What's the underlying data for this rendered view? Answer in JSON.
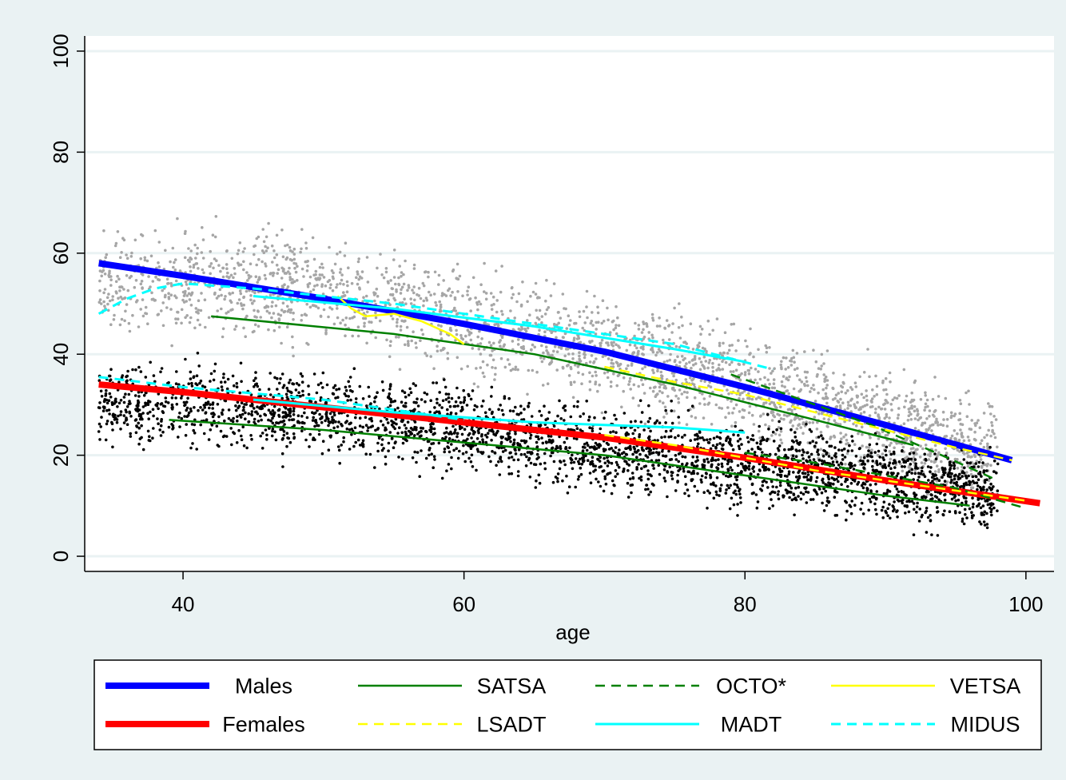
{
  "chart_data": {
    "type": "scatter",
    "title": "",
    "xlabel": "age",
    "ylabel": "",
    "xlim": [
      33,
      102
    ],
    "ylim": [
      -3,
      103
    ],
    "x_ticks": [
      40,
      60,
      80,
      100
    ],
    "y_ticks": [
      0,
      20,
      40,
      60,
      80,
      100
    ],
    "grid": "horizontal",
    "legend_position": "bottom",
    "scatter_groups": [
      {
        "group": "males",
        "color": "#a6a6a6",
        "center": [
          [
            45,
            54
          ],
          [
            50,
            52
          ],
          [
            55,
            50
          ],
          [
            60,
            47
          ],
          [
            65,
            44
          ],
          [
            70,
            41
          ],
          [
            75,
            38
          ],
          [
            80,
            34
          ],
          [
            85,
            30
          ],
          [
            90,
            26
          ],
          [
            95,
            22
          ]
        ],
        "spread": 9,
        "count": 2600
      },
      {
        "group": "females",
        "color": "#000000",
        "center": [
          [
            45,
            30
          ],
          [
            50,
            28
          ],
          [
            55,
            27
          ],
          [
            60,
            25
          ],
          [
            65,
            23
          ],
          [
            70,
            21
          ],
          [
            75,
            20
          ],
          [
            80,
            18
          ],
          [
            85,
            17
          ],
          [
            90,
            15
          ],
          [
            95,
            13
          ]
        ],
        "spread": 7,
        "count": 3000
      }
    ],
    "series": [
      {
        "name": "Males",
        "color": "#0000ff",
        "width": 8,
        "dash": "",
        "points": [
          [
            34,
            58
          ],
          [
            40,
            55.5
          ],
          [
            50,
            51
          ],
          [
            60,
            46
          ],
          [
            70,
            40.5
          ],
          [
            80,
            33.5
          ],
          [
            90,
            26
          ],
          [
            99,
            19
          ]
        ]
      },
      {
        "name": "Females",
        "color": "#ff0000",
        "width": 8,
        "dash": "",
        "points": [
          [
            34,
            34
          ],
          [
            40,
            32.5
          ],
          [
            50,
            29.5
          ],
          [
            60,
            26.5
          ],
          [
            70,
            23.5
          ],
          [
            80,
            19.5
          ],
          [
            90,
            15
          ],
          [
            101,
            10.5
          ]
        ]
      },
      {
        "name": "SATSA",
        "color": "#008000",
        "width": 2.5,
        "dash": "",
        "points": [
          [
            42,
            47.5
          ],
          [
            55,
            44
          ],
          [
            65,
            40
          ],
          [
            75,
            34
          ],
          [
            85,
            27
          ],
          [
            92,
            22
          ]
        ]
      },
      {
        "name": "SATSA",
        "color": "#008000",
        "width": 2.5,
        "dash": "",
        "points": [
          [
            39,
            27
          ],
          [
            50,
            25
          ],
          [
            60,
            22.5
          ],
          [
            70,
            20
          ],
          [
            80,
            16
          ],
          [
            90,
            12
          ],
          [
            96,
            10
          ]
        ]
      },
      {
        "name": "OCTO*",
        "color": "#008000",
        "width": 2.5,
        "dash": "12,8",
        "points": [
          [
            79,
            36
          ],
          [
            84,
            31
          ],
          [
            89,
            26
          ],
          [
            94,
            20
          ],
          [
            98,
            15
          ]
        ]
      },
      {
        "name": "OCTO*",
        "color": "#008000",
        "width": 2.5,
        "dash": "12,8",
        "points": [
          [
            80,
            20.5
          ],
          [
            85,
            18.5
          ],
          [
            90,
            16
          ],
          [
            95,
            13.5
          ],
          [
            100,
            9.5
          ]
        ]
      },
      {
        "name": "VETSA",
        "color": "#ffff00",
        "width": 2.5,
        "dash": "",
        "points": [
          [
            51,
            51.5
          ],
          [
            52,
            49
          ],
          [
            53,
            47.5
          ],
          [
            55,
            48
          ],
          [
            57,
            46.5
          ],
          [
            59,
            44
          ],
          [
            60,
            42
          ]
        ]
      },
      {
        "name": "LSADT",
        "color": "#ffff00",
        "width": 2.5,
        "dash": "12,8",
        "points": [
          [
            70,
            37.5
          ],
          [
            75,
            34.5
          ],
          [
            80,
            32
          ],
          [
            85,
            28.5
          ],
          [
            90,
            25
          ],
          [
            95,
            21.5
          ],
          [
            99,
            19
          ]
        ]
      },
      {
        "name": "LSADT",
        "color": "#ffff00",
        "width": 2.5,
        "dash": "12,8",
        "points": [
          [
            70,
            24
          ],
          [
            75,
            22
          ],
          [
            80,
            19.5
          ],
          [
            85,
            17
          ],
          [
            90,
            15
          ],
          [
            95,
            13
          ],
          [
            100,
            11
          ]
        ]
      },
      {
        "name": "MADT",
        "color": "#00ffff",
        "width": 3,
        "dash": "",
        "points": [
          [
            45,
            51.5
          ],
          [
            55,
            49
          ],
          [
            65,
            45.5
          ],
          [
            75,
            41
          ],
          [
            80,
            38.5
          ]
        ]
      },
      {
        "name": "MADT",
        "color": "#00ffff",
        "width": 3,
        "dash": "",
        "points": [
          [
            45,
            31
          ],
          [
            55,
            28.5
          ],
          [
            65,
            26.5
          ],
          [
            75,
            25.5
          ],
          [
            80,
            24.5
          ]
        ]
      },
      {
        "name": "MIDUS",
        "color": "#00ffff",
        "width": 3,
        "dash": "12,8",
        "points": [
          [
            34,
            48
          ],
          [
            36,
            51
          ],
          [
            38,
            53
          ],
          [
            40,
            54
          ],
          [
            45,
            53
          ],
          [
            55,
            50
          ],
          [
            65,
            46
          ],
          [
            75,
            42
          ],
          [
            82,
            37
          ]
        ]
      },
      {
        "name": "MIDUS",
        "color": "#00ffff",
        "width": 3,
        "dash": "12,8",
        "points": [
          [
            34,
            35.5
          ],
          [
            40,
            33.5
          ],
          [
            50,
            31
          ],
          [
            55,
            29
          ],
          [
            60,
            27
          ]
        ]
      }
    ],
    "legend": [
      {
        "label": "Males",
        "color": "#0000ff",
        "width": 8,
        "dash": ""
      },
      {
        "label": "SATSA",
        "color": "#008000",
        "width": 2.5,
        "dash": ""
      },
      {
        "label": "OCTO*",
        "color": "#008000",
        "width": 2.5,
        "dash": "12,8"
      },
      {
        "label": "VETSA",
        "color": "#ffff00",
        "width": 2.5,
        "dash": ""
      },
      {
        "label": "Females",
        "color": "#ff0000",
        "width": 8,
        "dash": ""
      },
      {
        "label": "LSADT",
        "color": "#ffff00",
        "width": 2.5,
        "dash": "12,8"
      },
      {
        "label": "MADT",
        "color": "#00ffff",
        "width": 3,
        "dash": ""
      },
      {
        "label": "MIDUS",
        "color": "#00ffff",
        "width": 3,
        "dash": "12,8"
      }
    ]
  }
}
